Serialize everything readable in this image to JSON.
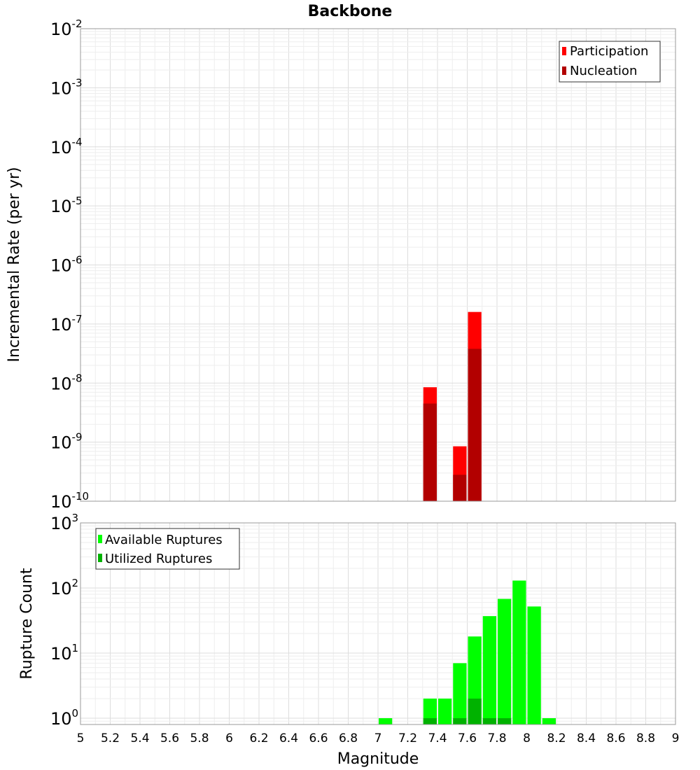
{
  "chart_data": [
    {
      "type": "bar",
      "title": "Backbone",
      "xlabel": "",
      "ylabel": "Incremental Rate (per yr)",
      "yscale": "log",
      "ylim": [
        1e-10,
        0.01
      ],
      "xlim": [
        5,
        9
      ],
      "bar_width": 0.1,
      "grid": true,
      "legend_position": "top-right",
      "series": [
        {
          "name": "Participation",
          "color": "#ff0000",
          "x": [
            7.35,
            7.55,
            7.65
          ],
          "values": [
            8.5e-09,
            8.5e-10,
            1.6e-07
          ]
        },
        {
          "name": "Nucleation",
          "color": "#b20000",
          "x": [
            7.35,
            7.55,
            7.65
          ],
          "values": [
            4.5e-09,
            2.8e-10,
            3.8e-08
          ]
        }
      ]
    },
    {
      "type": "bar",
      "title": "",
      "xlabel": "Magnitude",
      "ylabel": "Rupture Count",
      "yscale": "log",
      "ylim": [
        0.8,
        1000
      ],
      "xlim": [
        5,
        9
      ],
      "bar_width": 0.1,
      "grid": true,
      "legend_position": "top-left",
      "x_ticks": [
        "5",
        "5.2",
        "5.4",
        "5.6",
        "5.8",
        "6",
        "6.2",
        "6.4",
        "6.6",
        "6.8",
        "7",
        "7.2",
        "7.4",
        "7.6",
        "7.8",
        "8",
        "8.2",
        "8.4",
        "8.6",
        "8.8",
        "9"
      ],
      "series": [
        {
          "name": "Available Ruptures",
          "color": "#00ff00",
          "x": [
            7.05,
            7.35,
            7.45,
            7.55,
            7.65,
            7.75,
            7.85,
            7.95,
            8.05,
            8.15
          ],
          "values": [
            1,
            2,
            2,
            7,
            18,
            37,
            68,
            130,
            52,
            1
          ]
        },
        {
          "name": "Utilized Ruptures",
          "color": "#00b200",
          "x": [
            7.35,
            7.55,
            7.65,
            7.75,
            7.85
          ],
          "values": [
            1,
            1,
            2,
            1,
            1
          ]
        }
      ]
    }
  ],
  "top_y_ticks": [
    {
      "base": "10",
      "exp": "-2"
    },
    {
      "base": "10",
      "exp": "-3"
    },
    {
      "base": "10",
      "exp": "-4"
    },
    {
      "base": "10",
      "exp": "-5"
    },
    {
      "base": "10",
      "exp": "-6"
    },
    {
      "base": "10",
      "exp": "-7"
    },
    {
      "base": "10",
      "exp": "-8"
    },
    {
      "base": "10",
      "exp": "-9"
    },
    {
      "base": "10",
      "exp": "-10"
    }
  ],
  "bottom_y_ticks": [
    {
      "base": "10",
      "exp": "3"
    },
    {
      "base": "10",
      "exp": "2"
    },
    {
      "base": "10",
      "exp": "1"
    },
    {
      "base": "10",
      "exp": "0"
    }
  ]
}
